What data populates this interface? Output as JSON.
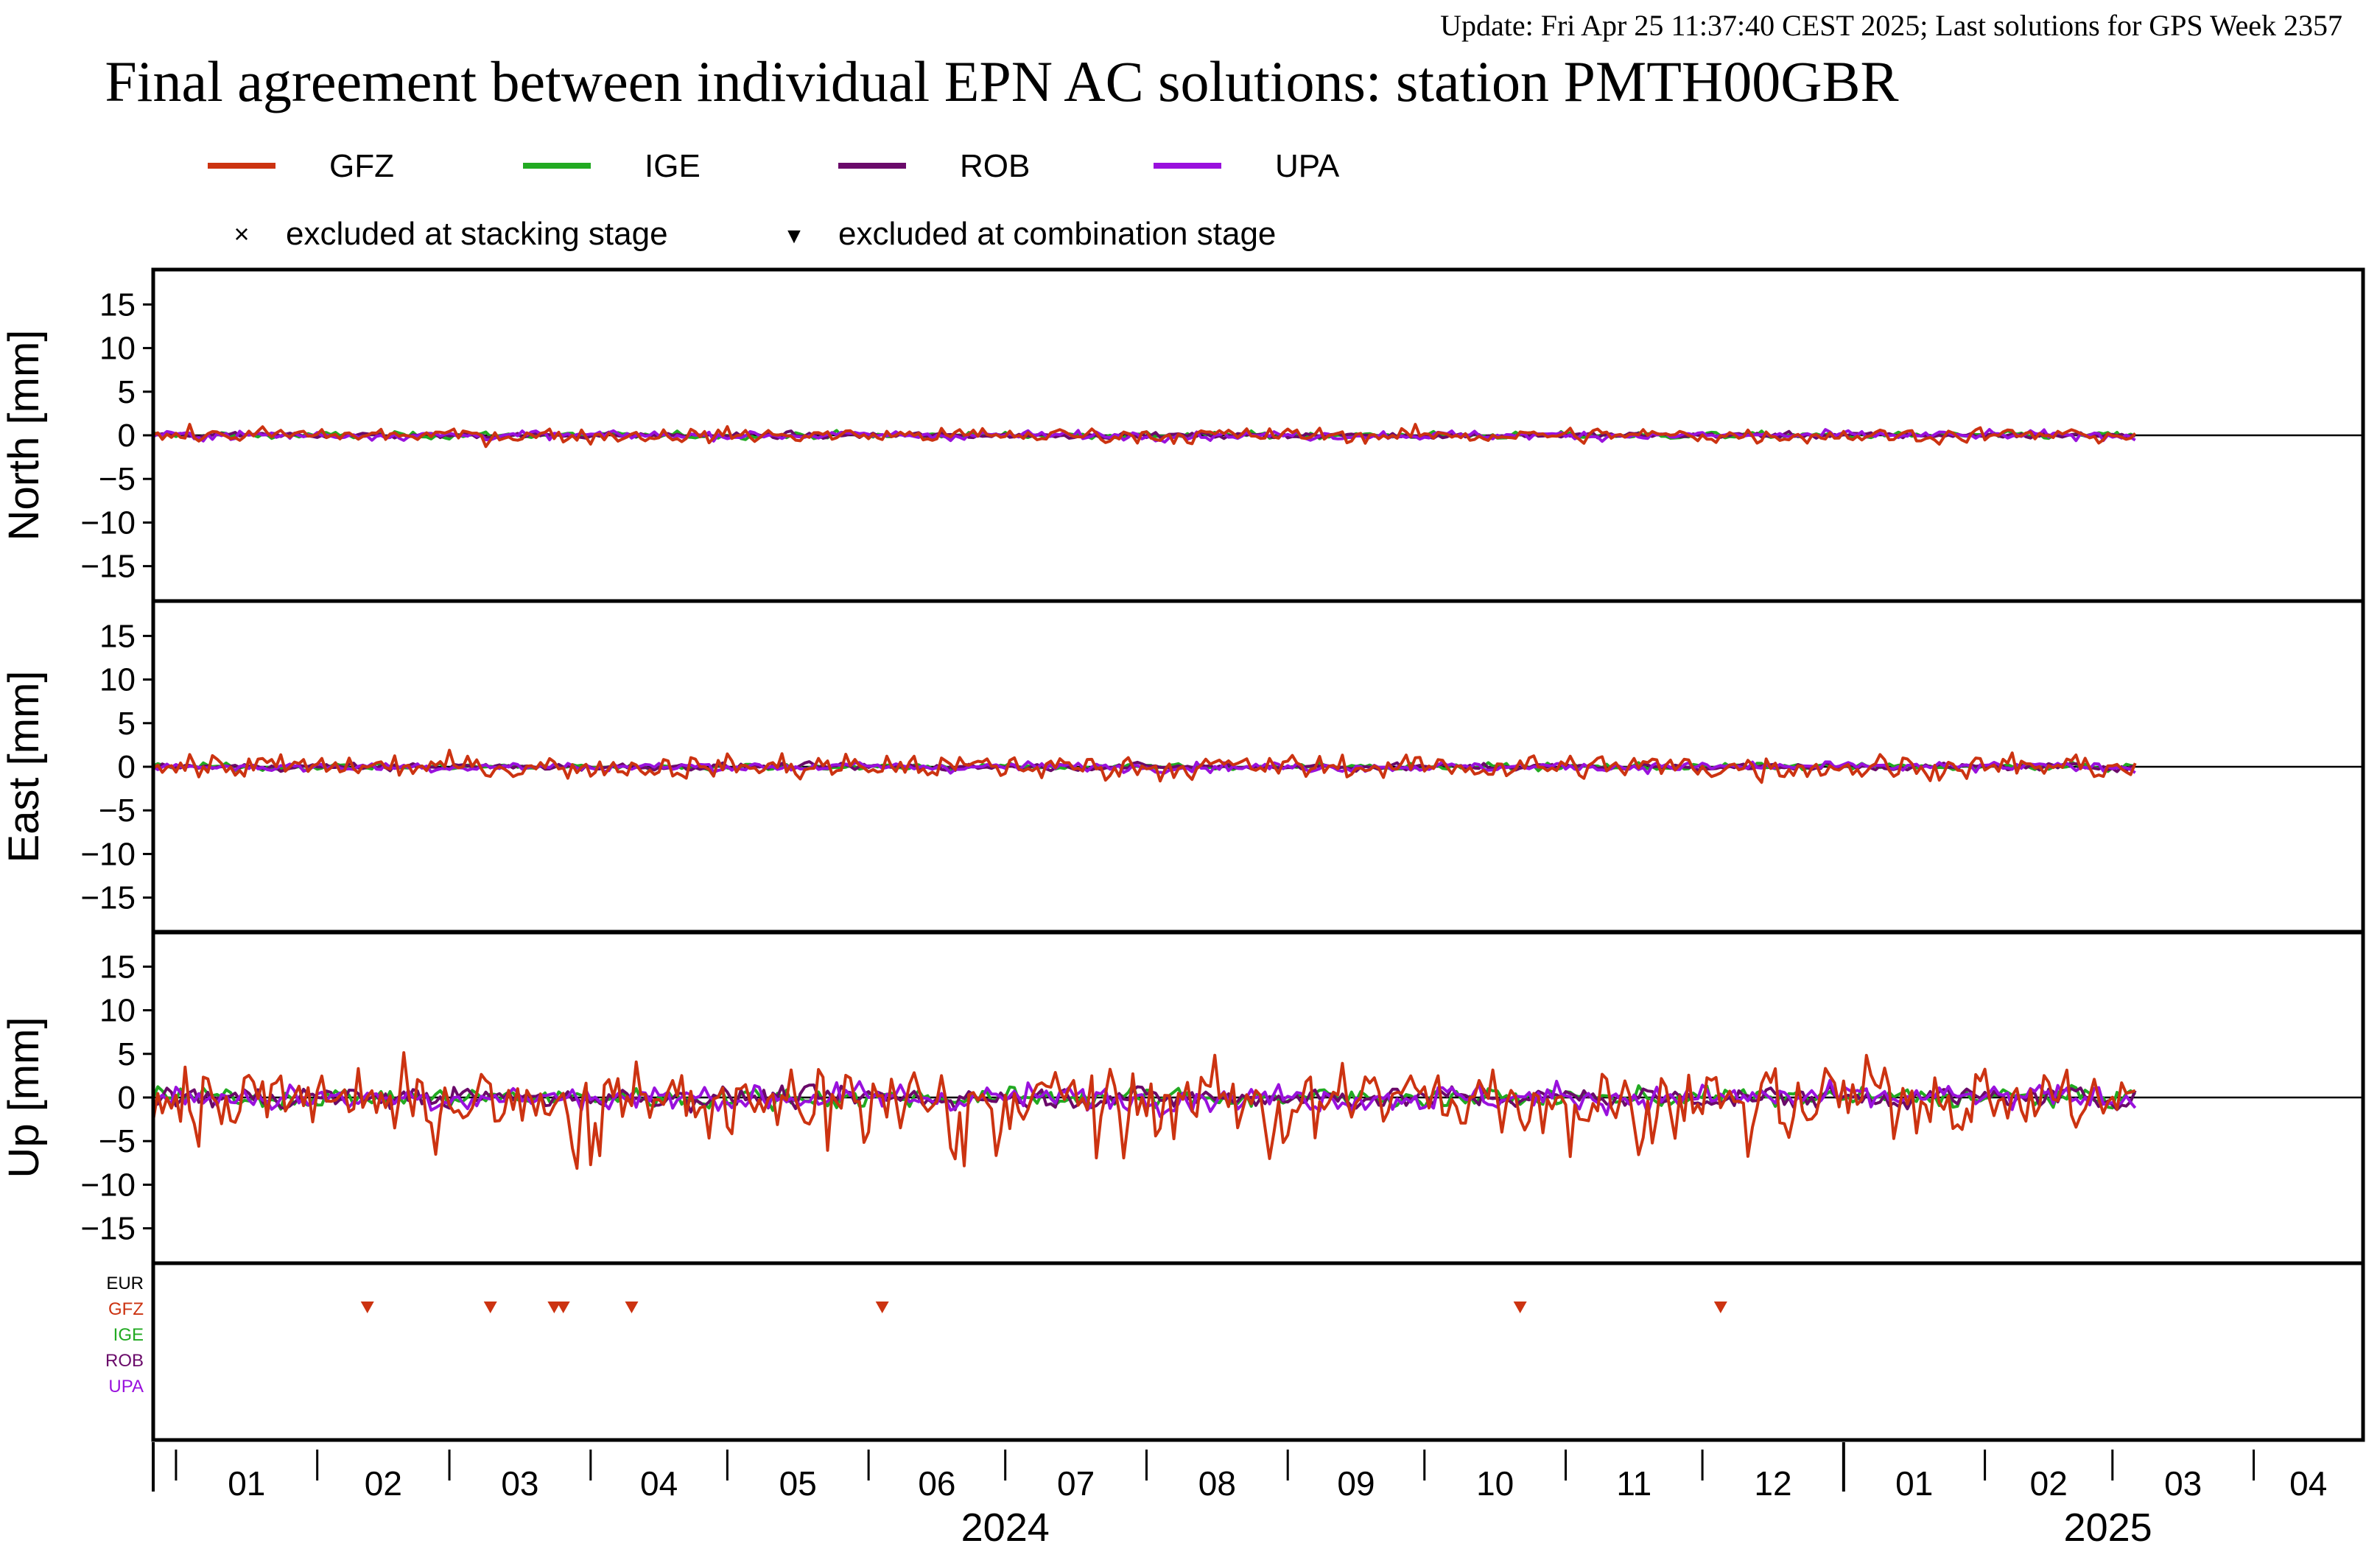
{
  "header": {
    "update_line": "Update: Fri Apr 25 11:37:40 CEST 2025; Last solutions for GPS Week 2357",
    "title": "Final agreement between individual EPN AC solutions: station PMTH00GBR"
  },
  "legend": {
    "series": [
      {
        "name": "GFZ",
        "color": "#cc3311"
      },
      {
        "name": "IGE",
        "color": "#22aa22"
      },
      {
        "name": "ROB",
        "color": "#6a0a6a"
      },
      {
        "name": "UPA",
        "color": "#9911dd"
      }
    ],
    "markers": [
      {
        "symbol": "×",
        "label": "excluded at stacking stage"
      },
      {
        "symbol": "▼",
        "label": "excluded at combination stage"
      }
    ]
  },
  "colors": {
    "EUR": "#000000",
    "GFZ": "#cc3311",
    "IGE": "#22aa22",
    "ROB": "#6a0a6a",
    "UPA": "#9911dd",
    "update_text": "#8b1a1a",
    "axis": "#000000"
  },
  "exclusion_panel": {
    "labels": [
      "EUR",
      "GFZ",
      "IGE",
      "ROB",
      "UPA"
    ]
  },
  "chart_data": {
    "type": "line",
    "x_type": "date",
    "x_range": [
      "2023-12-27",
      "2025-04-25"
    ],
    "data_end": "2025-03-06",
    "month_ticks": [
      "01",
      "02",
      "03",
      "04",
      "05",
      "06",
      "07",
      "08",
      "09",
      "10",
      "11",
      "12",
      "01",
      "02",
      "03",
      "04"
    ],
    "month_boundaries": [
      "2024-01-01",
      "2024-02-01",
      "2024-03-01",
      "2024-04-01",
      "2024-05-01",
      "2024-06-01",
      "2024-07-01",
      "2024-08-01",
      "2024-09-01",
      "2024-10-01",
      "2024-11-01",
      "2024-12-01",
      "2025-01-01",
      "2025-02-01",
      "2025-03-01",
      "2025-04-01",
      "2025-05-01"
    ],
    "year_labels": [
      {
        "label": "2024",
        "center": "2024-07-01"
      },
      {
        "label": "2025",
        "center": "2025-02-28"
      }
    ],
    "year_boundary": "2025-01-01",
    "panels": [
      {
        "ylabel": "North [mm]",
        "ylim": [
          -19,
          19
        ],
        "yticks": [
          -15,
          -10,
          -5,
          0,
          5,
          10,
          15
        ],
        "amplitudes": {
          "GFZ": 0.8,
          "IGE": 0.35,
          "ROB": 0.3,
          "UPA": 0.45
        }
      },
      {
        "ylabel": "East [mm]",
        "ylim": [
          -19,
          19
        ],
        "yticks": [
          -15,
          -10,
          -5,
          0,
          5,
          10,
          15
        ],
        "amplitudes": {
          "GFZ": 1.3,
          "IGE": 0.35,
          "ROB": 0.35,
          "UPA": 0.5
        }
      },
      {
        "ylabel": "Up [mm]",
        "ylim": [
          -19,
          19
        ],
        "yticks": [
          -15,
          -10,
          -5,
          0,
          5,
          10,
          15
        ],
        "amplitudes": {
          "GFZ": 3.6,
          "IGE": 1.0,
          "ROB": 1.1,
          "UPA": 1.4
        }
      }
    ],
    "series": [
      "GFZ",
      "IGE",
      "ROB",
      "UPA"
    ],
    "excluded_combination": {
      "GFZ": [
        "2024-02-12",
        "2024-03-10",
        "2024-03-24",
        "2024-03-26",
        "2024-04-10",
        "2024-06-04",
        "2024-10-22",
        "2024-12-05"
      ]
    }
  }
}
